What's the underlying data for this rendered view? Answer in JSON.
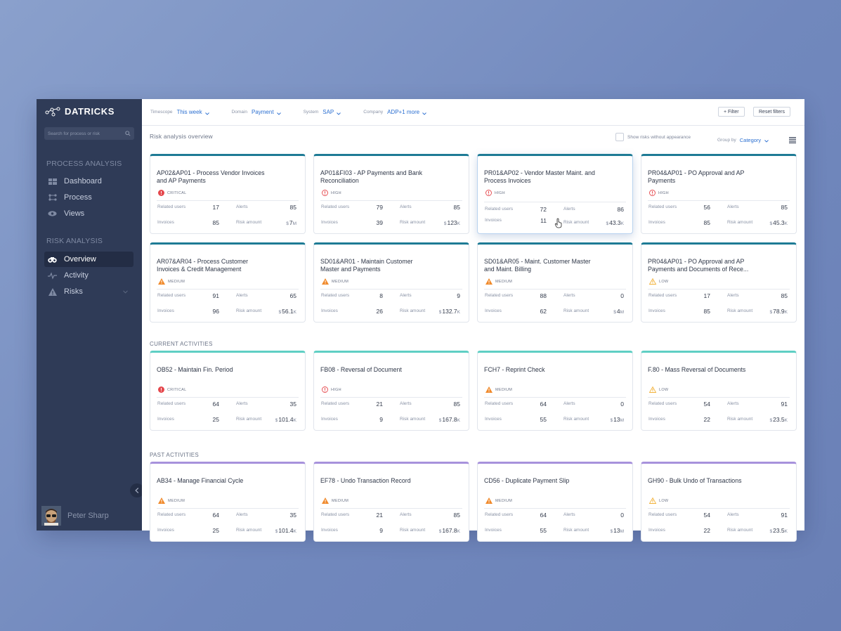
{
  "app": {
    "logo_text": "DATRICKS",
    "search_placeholder": "Search for process or risk",
    "user_name": "Peter Sharp"
  },
  "sidebar": {
    "process_title": "PROCESS ANALYSIS",
    "process_items": [
      {
        "label": "Dashboard",
        "icon": "dashboard-icon"
      },
      {
        "label": "Process",
        "icon": "process-icon"
      },
      {
        "label": "Views",
        "icon": "eye-icon"
      }
    ],
    "risk_title": "RISK ANALYSIS",
    "risk_items": [
      {
        "label": "Overview",
        "icon": "binoculars-icon",
        "active": true
      },
      {
        "label": "Activity",
        "icon": "activity-icon"
      },
      {
        "label": "Risks",
        "icon": "warning-icon"
      }
    ]
  },
  "topbar": {
    "filters": [
      {
        "label": "Timescope",
        "value": "This week"
      },
      {
        "label": "Domain",
        "value": "Payment"
      },
      {
        "label": "System",
        "value": "SAP"
      },
      {
        "label": "Company",
        "value": "ADP+1 more"
      }
    ],
    "filter_button": "+ Filter",
    "reset_button": "Reset filters"
  },
  "overview": {
    "title": "Risk analysis overview",
    "show_risks_label": "Show risks without appearance",
    "group_by_label": "Group by",
    "group_by_value": "Category"
  },
  "labels": {
    "related_users": "Related users",
    "alerts": "Alerts",
    "invoices": "Invoices",
    "risk_amount": "Risk amount",
    "currency": "$"
  },
  "sections": {
    "current": "CURRENT ACTIVITIES",
    "past": "PAST ACTIVITIES"
  },
  "risk_cards": [
    {
      "title": "AP02&AP01 - Process Vendor Invoices and AP Payments",
      "severity": "CRITICAL",
      "users": "17",
      "alerts": "85",
      "invoices": "85",
      "amount": "7",
      "suffix": "M"
    },
    {
      "title": "AP01&FI03 - AP Payments and Bank Reconciliation",
      "severity": "HIGH",
      "users": "79",
      "alerts": "85",
      "invoices": "39",
      "amount": "123",
      "suffix": "K"
    },
    {
      "title": "PR01&AP02 - Vendor Master Maint. and Process Invoices",
      "severity": "HIGH",
      "users": "72",
      "alerts": "86",
      "invoices": "11",
      "amount": "43.3",
      "suffix": "K"
    },
    {
      "title": "PR04&AP01 - PO Approval and AP Payments",
      "severity": "HIGH",
      "users": "56",
      "alerts": "85",
      "invoices": "85",
      "amount": "45.3",
      "suffix": "K"
    },
    {
      "title": "AR07&AR04 - Process Customer Invoices & Credit Management",
      "severity": "MEDIUM",
      "users": "91",
      "alerts": "65",
      "invoices": "96",
      "amount": "56.1",
      "suffix": "K"
    },
    {
      "title": "SD01&AR01 - Maintain Customer Master and Payments",
      "severity": "MEDIUM",
      "users": "8",
      "alerts": "9",
      "invoices": "26",
      "amount": "132.7",
      "suffix": "K"
    },
    {
      "title": "SD01&AR05 - Maint. Customer Master and Maint. Billing",
      "severity": "MEDIUM",
      "users": "88",
      "alerts": "0",
      "invoices": "62",
      "amount": "4",
      "suffix": "M"
    },
    {
      "title": "PR04&AP01 - PO Approval and AP Payments and Documents of Rece...",
      "severity": "LOW",
      "users": "17",
      "alerts": "85",
      "invoices": "85",
      "amount": "78.9",
      "suffix": "K"
    }
  ],
  "current_cards": [
    {
      "title": "OB52 - Maintain Fin. Period",
      "severity": "CRITICAL",
      "users": "64",
      "alerts": "35",
      "invoices": "25",
      "amount": "101.4",
      "suffix": "K"
    },
    {
      "title": "FB08 - Reversal of Document",
      "severity": "HIGH",
      "users": "21",
      "alerts": "85",
      "invoices": "9",
      "amount": "167.8",
      "suffix": "K"
    },
    {
      "title": "FCH7 - Reprint Check",
      "severity": "MEDIUM",
      "users": "64",
      "alerts": "0",
      "invoices": "55",
      "amount": "13",
      "suffix": "M"
    },
    {
      "title": "F.80 - Mass Reversal of Documents",
      "severity": "LOW",
      "users": "54",
      "alerts": "91",
      "invoices": "22",
      "amount": "23.5",
      "suffix": "K"
    }
  ],
  "past_cards": [
    {
      "title": "AB34 - Manage Financial Cycle",
      "severity": "MEDIUM",
      "users": "64",
      "alerts": "35",
      "invoices": "25",
      "amount": "101.4",
      "suffix": "K"
    },
    {
      "title": "EF78 - Undo Transaction Record",
      "severity": "MEDIUM",
      "users": "21",
      "alerts": "85",
      "invoices": "9",
      "amount": "167.8",
      "suffix": "K"
    },
    {
      "title": "CD56 - Duplicate Payment Slip",
      "severity": "MEDIUM",
      "users": "64",
      "alerts": "0",
      "invoices": "55",
      "amount": "13",
      "suffix": "M"
    },
    {
      "title": "GH90 - Bulk Undo of Transactions",
      "severity": "LOW",
      "users": "54",
      "alerts": "91",
      "invoices": "22",
      "amount": "23.5",
      "suffix": "K"
    }
  ],
  "colors": {
    "sidebar": "#2f3b57",
    "accent": "#2b6fd1",
    "risk_stripe": "#1e7b95",
    "current_stripe": "#5fcfc4",
    "past_stripe": "#a792dc",
    "critical": "#e5484d",
    "high": "#e5484d",
    "medium": "#f08a2c",
    "low": "#f2b33d"
  }
}
